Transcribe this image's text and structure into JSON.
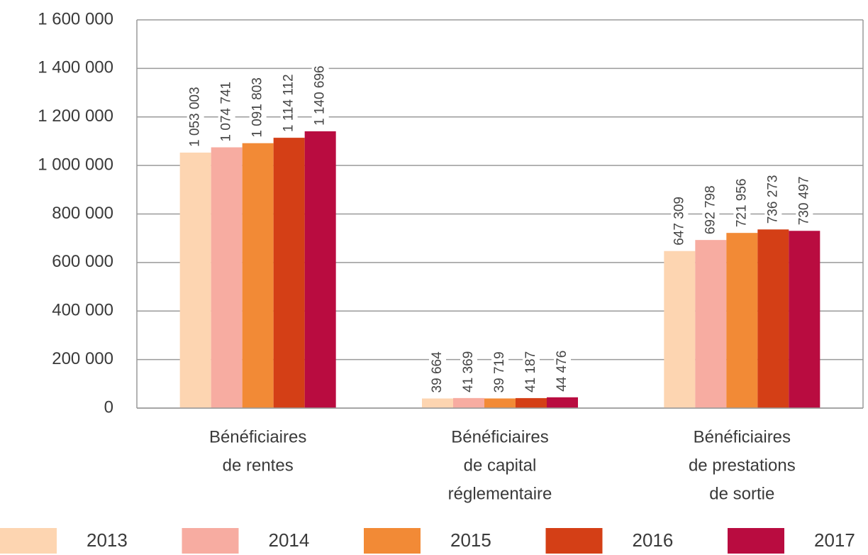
{
  "chart_data": {
    "type": "bar",
    "categories": [
      [
        "Bénéficiaires",
        "de rentes"
      ],
      [
        "Bénéficiaires",
        "de capital",
        "réglementaire"
      ],
      [
        "Bénéficiaires",
        "de prestations",
        "de sortie"
      ]
    ],
    "series": [
      {
        "name": "2013",
        "color": "#fdd5b1",
        "values": [
          1053003,
          39664,
          647309
        ],
        "value_labels": [
          "1 053 003",
          "39 664",
          "647 309"
        ]
      },
      {
        "name": "2014",
        "color": "#f7aca1",
        "values": [
          1074741,
          41369,
          692798
        ],
        "value_labels": [
          "1 074 741",
          "41 369",
          "692 798"
        ]
      },
      {
        "name": "2015",
        "color": "#f28a36",
        "values": [
          1091803,
          39719,
          721956
        ],
        "value_labels": [
          "1 091 803",
          "39 719",
          "721 956"
        ]
      },
      {
        "name": "2016",
        "color": "#d43f16",
        "values": [
          1114112,
          41187,
          736273
        ],
        "value_labels": [
          "1 114 112",
          "41 187",
          "736 273"
        ]
      },
      {
        "name": "2017",
        "color": "#b90c40",
        "values": [
          1140696,
          44476,
          730497
        ],
        "value_labels": [
          "1 140 696",
          "44 476",
          "730 497"
        ]
      }
    ],
    "ylim": [
      0,
      1600000
    ],
    "yticks": [
      0,
      {
        "value": 200000,
        "label": "200 000"
      },
      {
        "value": 400000,
        "label": "400 000"
      },
      {
        "value": 600000,
        "label": "600 000"
      },
      {
        "value": 800000,
        "label": "800 000"
      },
      {
        "value": 1000000,
        "label": "1 000 000"
      },
      {
        "value": 1200000,
        "label": "1 200 000"
      },
      {
        "value": 1400000,
        "label": "1 400 000"
      },
      {
        "value": 1600000,
        "label": "1 600 000"
      }
    ],
    "grid": true,
    "legend": "bottom"
  }
}
